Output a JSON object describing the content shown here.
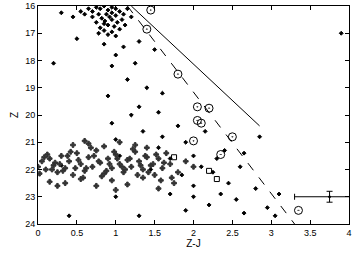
{
  "chart_data": {
    "type": "scatter",
    "x_label": "Z-J",
    "y_label": "Z",
    "xlim": [
      0,
      4
    ],
    "ylim": [
      24,
      16
    ],
    "xticks": [
      0,
      0.5,
      1,
      1.5,
      2,
      2.5,
      3,
      3.5,
      4
    ],
    "yticks": [
      16,
      17,
      18,
      19,
      20,
      21,
      22,
      23,
      24
    ],
    "grid": false,
    "series": [
      {
        "type": "scatter",
        "marker": "diamond",
        "color": "#000000",
        "x": [
          0.75,
          0.8,
          0.85,
          0.9,
          0.95,
          1.0,
          1.05,
          0.7,
          0.78,
          0.88,
          0.92,
          1.0,
          1.1,
          0.82,
          0.86,
          0.95,
          1.02,
          0.75,
          0.9,
          0.98,
          1.08,
          0.8,
          0.85,
          0.95,
          1.05,
          0.7,
          0.65,
          1.15,
          1.2,
          0.9,
          1.0,
          0.6,
          0.55,
          0.95,
          0.85,
          1.12,
          0.78,
          0.3,
          0.45,
          0.5,
          0.85,
          1.1,
          1.0,
          1.3,
          0.95,
          1.25,
          1.5,
          0.2,
          1.15,
          1.4,
          0.9,
          1.3,
          1.6,
          1.2,
          1.55,
          0.95,
          1.8,
          1.0,
          1.35,
          1.6,
          1.9,
          2.15,
          1.55,
          1.05,
          1.7,
          2.0,
          2.1,
          2.4,
          1.45,
          1.85,
          2.25,
          2.45,
          2.6,
          2.0,
          1.7,
          2.35,
          2.55,
          2.8,
          2.2,
          2.95,
          1.9,
          2.65,
          1.0,
          2.85,
          2.65,
          2.3,
          2.0,
          3.1,
          3.05,
          3.9,
          0.3,
          0.4,
          1.3
        ],
        "y": [
          16.05,
          16.1,
          16.0,
          16.15,
          16.05,
          16.1,
          16.2,
          16.2,
          16.3,
          16.3,
          16.4,
          16.35,
          16.3,
          16.45,
          16.55,
          16.5,
          16.6,
          16.6,
          16.7,
          16.75,
          16.5,
          16.8,
          16.9,
          16.95,
          16.85,
          16.4,
          16.1,
          16.1,
          16.4,
          17.05,
          17.1,
          16.3,
          16.2,
          16.25,
          16.65,
          16.7,
          17.0,
          16.25,
          16.4,
          17.2,
          17.4,
          17.5,
          17.8,
          17.3,
          18.2,
          18.1,
          17.6,
          18.1,
          18.7,
          19.0,
          19.3,
          19.7,
          19.2,
          20.0,
          19.9,
          20.3,
          20.4,
          20.9,
          20.6,
          20.8,
          21.0,
          20.6,
          21.2,
          21.5,
          21.6,
          21.5,
          21.9,
          21.3,
          22.0,
          22.2,
          22.1,
          22.5,
          21.9,
          22.6,
          22.9,
          22.9,
          23.1,
          22.7,
          23.3,
          23.4,
          23.5,
          23.6,
          23.0,
          20.8,
          21.4,
          21.6,
          23.0,
          22.9,
          23.7,
          17.0,
          21.85,
          23.7,
          23.7
        ]
      },
      {
        "type": "scatter",
        "marker": "cross",
        "color": "#333333",
        "x": [
          0.0,
          0.05,
          0.1,
          0.15,
          0.2,
          0.25,
          0.3,
          0.35,
          0.4,
          0.45,
          0.5,
          0.55,
          0.6,
          0.65,
          0.7,
          0.75,
          0.8,
          0.85,
          0.9,
          0.95,
          1.0,
          1.05,
          1.1,
          1.15,
          1.2,
          1.25,
          1.3,
          1.35,
          1.4,
          1.45,
          1.5,
          1.55,
          1.6,
          1.65,
          1.7,
          1.8,
          1.9,
          2.0,
          0.02,
          0.12,
          0.22,
          0.32,
          0.42,
          0.52,
          0.62,
          0.72,
          0.82,
          0.92,
          1.02,
          1.12,
          1.22,
          1.32,
          1.42,
          1.52,
          1.62,
          1.72,
          0.08,
          0.18,
          0.28,
          0.38,
          0.48,
          0.58,
          0.68,
          0.78,
          0.88,
          0.98,
          1.08,
          1.18,
          1.28,
          1.38,
          1.48,
          1.58,
          0.15,
          0.35,
          0.55,
          0.75,
          0.95,
          1.15,
          1.35,
          1.55,
          0.45,
          0.65,
          0.85,
          1.05,
          1.25,
          0.25,
          1.75,
          0.6,
          1.0,
          1.4
        ],
        "y": [
          21.9,
          21.7,
          22.0,
          21.6,
          21.85,
          22.1,
          21.5,
          21.95,
          21.7,
          22.2,
          21.4,
          21.8,
          22.05,
          21.55,
          21.9,
          21.3,
          21.75,
          22.15,
          21.6,
          21.95,
          21.45,
          21.8,
          22.1,
          21.65,
          21.9,
          21.35,
          21.7,
          22.0,
          21.55,
          21.85,
          22.2,
          21.6,
          21.95,
          21.4,
          21.8,
          22.1,
          21.7,
          21.9,
          22.15,
          21.45,
          21.75,
          22.05,
          21.35,
          21.65,
          21.95,
          21.5,
          22.25,
          21.8,
          21.6,
          22.0,
          21.25,
          21.85,
          22.1,
          21.45,
          21.75,
          22.3,
          21.55,
          22.0,
          21.8,
          21.5,
          21.95,
          22.3,
          21.2,
          21.7,
          22.05,
          21.35,
          21.9,
          21.6,
          22.2,
          21.5,
          21.8,
          22.4,
          22.45,
          22.5,
          22.35,
          22.6,
          22.4,
          22.55,
          22.3,
          22.7,
          21.1,
          21.05,
          21.15,
          21.0,
          21.1,
          22.6,
          22.5,
          20.95,
          22.75,
          21.2
        ]
      },
      {
        "type": "scatter",
        "marker": "circle-open-dot",
        "color": "#000000",
        "x": [
          1.45,
          1.4,
          1.8,
          2.05,
          2.2,
          2.05,
          2.1,
          2.0,
          2.5,
          2.35,
          3.35
        ],
        "y": [
          16.15,
          16.85,
          18.5,
          19.7,
          19.75,
          20.2,
          20.3,
          20.95,
          20.8,
          21.45,
          23.5
        ]
      },
      {
        "type": "scatter",
        "marker": "square-open",
        "color": "#000000",
        "x": [
          1.75,
          2.2,
          2.3
        ],
        "y": [
          21.55,
          22.05,
          22.35
        ]
      },
      {
        "type": "line",
        "line_style": "solid",
        "color": "#000000",
        "x": [
          1.2,
          2.85
        ],
        "y": [
          16,
          20.4
        ]
      },
      {
        "type": "line",
        "line_style": "dash",
        "color": "#000000",
        "x": [
          1.15,
          3.3
        ],
        "y": [
          16,
          24
        ]
      },
      {
        "type": "errorbar",
        "marker": "circle",
        "color": "#000000",
        "x": [
          3.75
        ],
        "y": [
          23.0
        ],
        "xerr": [
          0.45
        ],
        "yerr": [
          0.2
        ]
      }
    ]
  }
}
